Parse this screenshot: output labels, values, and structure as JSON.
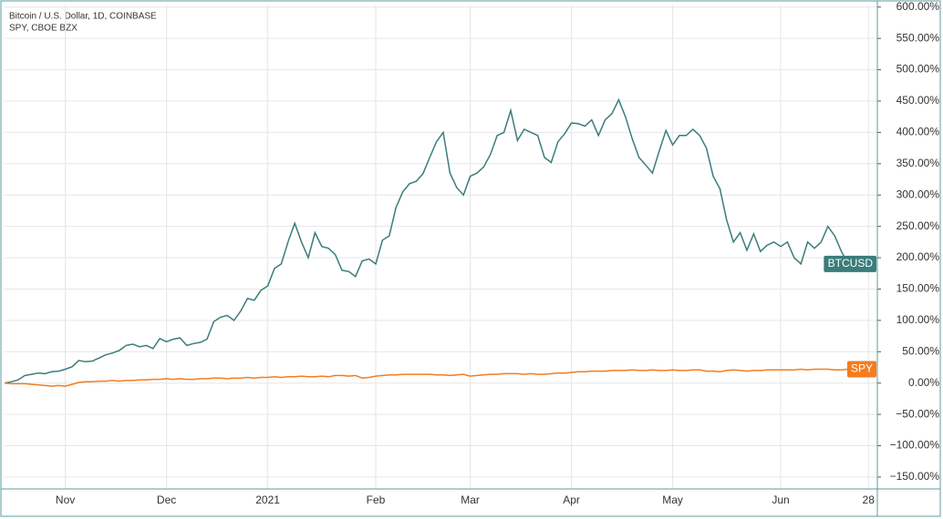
{
  "chart_data": {
    "type": "line",
    "legend": [
      "Bitcoin / U.S. Dollar, 1D, COINBASE",
      "SPY, CBOE BZX"
    ],
    "categories": [
      null,
      null,
      null,
      null,
      null,
      null,
      null,
      null,
      null,
      "Nov",
      null,
      null,
      null,
      null,
      null,
      null,
      null,
      null,
      null,
      null,
      null,
      null,
      null,
      null,
      "Dec",
      null,
      null,
      null,
      null,
      null,
      null,
      null,
      null,
      null,
      null,
      null,
      null,
      null,
      null,
      "2021",
      null,
      null,
      null,
      null,
      null,
      null,
      null,
      null,
      null,
      null,
      null,
      null,
      null,
      null,
      null,
      "Feb",
      null,
      null,
      null,
      null,
      null,
      null,
      null,
      null,
      null,
      null,
      null,
      null,
      null,
      "Mar",
      null,
      null,
      null,
      null,
      null,
      null,
      null,
      null,
      null,
      null,
      null,
      null,
      null,
      null,
      "Apr",
      null,
      null,
      null,
      null,
      null,
      null,
      null,
      null,
      null,
      null,
      null,
      null,
      null,
      null,
      "May",
      null,
      null,
      null,
      null,
      null,
      null,
      null,
      null,
      null,
      null,
      null,
      null,
      null,
      null,
      null,
      "Jun",
      null,
      null,
      null,
      null,
      null,
      null,
      null,
      null,
      null,
      null,
      null,
      null,
      "28"
    ],
    "series": [
      {
        "name": "BTCUSD",
        "color": "#3a7d7a",
        "values": [
          0,
          2,
          5,
          12,
          14,
          16,
          15,
          18,
          19,
          22,
          26,
          36,
          34,
          35,
          40,
          45,
          48,
          52,
          60,
          62,
          58,
          60,
          55,
          71,
          66,
          70,
          72,
          60,
          63,
          65,
          70,
          98,
          105,
          108,
          100,
          115,
          135,
          132,
          148,
          155,
          183,
          190,
          225,
          255,
          225,
          200,
          240,
          218,
          215,
          205,
          180,
          178,
          170,
          195,
          198,
          190,
          228,
          235,
          280,
          305,
          318,
          322,
          334,
          360,
          385,
          400,
          335,
          312,
          300,
          330,
          335,
          345,
          365,
          395,
          400,
          435,
          387,
          405,
          400,
          395,
          360,
          352,
          385,
          398,
          415,
          414,
          410,
          420,
          395,
          420,
          430,
          452,
          425,
          390,
          360,
          348,
          335,
          370,
          403,
          380,
          395,
          395,
          405,
          395,
          375,
          330,
          310,
          260,
          225,
          240,
          212,
          238,
          210,
          220,
          225,
          218,
          225,
          200,
          190,
          225,
          215,
          225,
          250,
          235,
          210,
          190,
          null,
          null,
          null
        ]
      },
      {
        "name": "SPY",
        "color": "#f57c1f",
        "values": [
          0,
          -1,
          -1,
          -1,
          -2,
          -3,
          -4,
          -5,
          -4,
          -5,
          -2,
          1,
          2,
          2,
          3,
          3,
          4,
          3,
          4,
          4,
          5,
          5,
          6,
          6,
          7,
          6,
          7,
          6,
          6,
          7,
          7,
          8,
          8,
          7,
          8,
          8,
          9,
          8,
          9,
          9,
          10,
          9,
          10,
          10,
          11,
          10,
          10,
          11,
          10,
          12,
          12,
          11,
          12,
          8,
          9,
          11,
          12,
          13,
          13,
          14,
          14,
          14,
          14,
          14,
          13,
          13,
          12,
          13,
          14,
          11,
          12,
          13,
          14,
          14,
          15,
          15,
          15,
          14,
          15,
          14,
          14,
          15,
          16,
          16,
          17,
          18,
          18,
          19,
          19,
          19,
          20,
          20,
          20,
          21,
          20,
          20,
          21,
          20,
          20,
          21,
          20,
          20,
          21,
          21,
          19,
          19,
          18,
          20,
          21,
          20,
          19,
          20,
          20,
          21,
          21,
          21,
          21,
          21,
          22,
          21,
          22,
          22,
          22,
          21,
          21,
          22,
          null,
          null,
          null
        ]
      }
    ],
    "ylim": [
      -169,
      604
    ],
    "yticks": [
      {
        "value": 600,
        "label": "600.00%"
      },
      {
        "value": 550,
        "label": "550.00%"
      },
      {
        "value": 500,
        "label": "500.00%"
      },
      {
        "value": 450,
        "label": "450.00%"
      },
      {
        "value": 400,
        "label": "400.00%"
      },
      {
        "value": 350,
        "label": "350.00%"
      },
      {
        "value": 300,
        "label": "300.00%"
      },
      {
        "value": 250,
        "label": "250.00%"
      },
      {
        "value": 200,
        "label": "200.00%"
      },
      {
        "value": 150,
        "label": "150.00%"
      },
      {
        "value": 100,
        "label": "100.00%"
      },
      {
        "value": 50,
        "label": "50.00%"
      },
      {
        "value": 0,
        "label": "0.00%"
      },
      {
        "value": -50,
        "label": "−50.00%"
      },
      {
        "value": -100,
        "label": "−100.00%"
      },
      {
        "value": -150,
        "label": "−150.00%"
      }
    ],
    "grid": true,
    "y_axis_side": "right"
  }
}
